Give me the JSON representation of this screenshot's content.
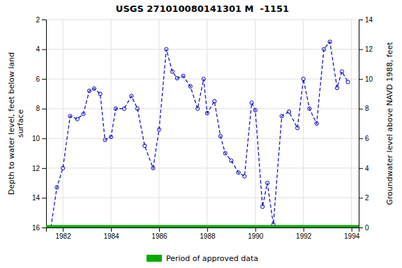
{
  "chart_data": {
    "type": "line",
    "title": "USGS 271010080141301 M  -1151",
    "ylabel": "Depth to water level, feet below land\nsurface",
    "y2label": "Groundwater level above NAVD 1988, feet",
    "x": [
      1981.5,
      1981.75,
      1982.0,
      1982.3,
      1982.6,
      1982.85,
      1983.1,
      1983.3,
      1983.55,
      1983.75,
      1984.0,
      1984.2,
      1984.55,
      1984.85,
      1985.1,
      1985.4,
      1985.75,
      1986.0,
      1986.3,
      1986.55,
      1986.75,
      1987.0,
      1987.3,
      1987.6,
      1987.85,
      1988.0,
      1988.3,
      1988.55,
      1988.75,
      1989.0,
      1989.3,
      1989.55,
      1989.85,
      1990.0,
      1990.3,
      1990.5,
      1990.75,
      1991.1,
      1991.4,
      1991.75,
      1992.0,
      1992.25,
      1992.55,
      1992.85,
      1993.1,
      1993.4,
      1993.6,
      1993.85
    ],
    "series": [
      {
        "color": "#0000cc",
        "marker": "circle",
        "line_style": "dashed",
        "values": [
          16.0,
          13.3,
          12.0,
          8.5,
          8.7,
          8.35,
          6.8,
          6.65,
          7.0,
          10.1,
          9.9,
          8.0,
          8.0,
          7.15,
          8.0,
          10.5,
          12.0,
          9.4,
          4.0,
          5.5,
          5.95,
          5.8,
          6.5,
          8.0,
          6.0,
          8.3,
          7.5,
          9.85,
          11.0,
          11.5,
          12.3,
          12.55,
          7.6,
          8.1,
          14.6,
          13.0,
          15.8,
          8.5,
          8.2,
          9.3,
          6.0,
          8.0,
          9.0,
          4.0,
          3.5,
          6.6,
          5.5,
          6.2
        ]
      }
    ],
    "hlines": [
      {
        "y": 16.0,
        "color": "#00aa00",
        "label": "Period of approved data"
      }
    ],
    "xlim": [
      1981.3,
      1994.3
    ],
    "xticks": [
      1982,
      1984,
      1986,
      1988,
      1990,
      1992,
      1994
    ],
    "ylim": [
      16,
      2
    ],
    "yticks": [
      2,
      4,
      6,
      8,
      10,
      12,
      14,
      16
    ],
    "y2lim": [
      0,
      14
    ],
    "y2ticks": [
      0,
      2,
      4,
      6,
      8,
      10,
      12,
      14
    ],
    "grid": true,
    "legend": "bottom"
  }
}
